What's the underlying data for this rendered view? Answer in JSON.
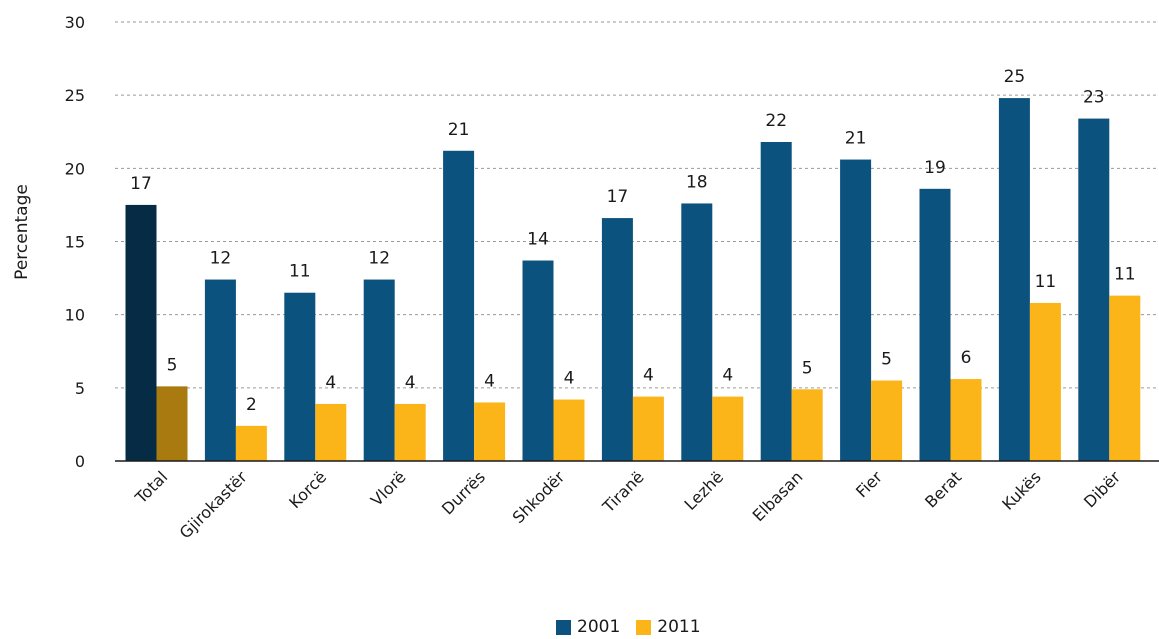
{
  "chart_data": {
    "type": "bar",
    "title": "",
    "xlabel": "",
    "ylabel": "Percentage",
    "ylim": [
      0,
      30
    ],
    "yticks": [
      0,
      5,
      10,
      15,
      20,
      25,
      30
    ],
    "grid": true,
    "legend_position": "bottom",
    "categories": [
      "Total",
      "Gjirokastër",
      "Korcë",
      "Vlorë",
      "Durrës",
      "Shkodër",
      "Tiranë",
      "Lezhë",
      "Elbasan",
      "Fier",
      "Berat",
      "Kukës",
      "Dibër"
    ],
    "series": [
      {
        "name": "2001",
        "color": "#0b527e",
        "highlight_color": "#062c45",
        "values": [
          17.5,
          12.4,
          11.5,
          12.4,
          21.2,
          13.7,
          16.6,
          17.6,
          21.8,
          20.6,
          18.6,
          24.8,
          23.4
        ],
        "labels": [
          "17",
          "12",
          "11",
          "12",
          "21",
          "14",
          "17",
          "18",
          "22",
          "21",
          "19",
          "25",
          "23"
        ]
      },
      {
        "name": "2011",
        "color": "#fbb518",
        "highlight_color": "#a87a10",
        "values": [
          5.1,
          2.4,
          3.9,
          3.9,
          4.0,
          4.2,
          4.4,
          4.4,
          4.9,
          5.5,
          5.6,
          10.8,
          11.3
        ],
        "labels": [
          "5",
          "2",
          "4",
          "4",
          "4",
          "4",
          "4",
          "4",
          "5",
          "5",
          "6",
          "11",
          "11"
        ]
      }
    ]
  }
}
